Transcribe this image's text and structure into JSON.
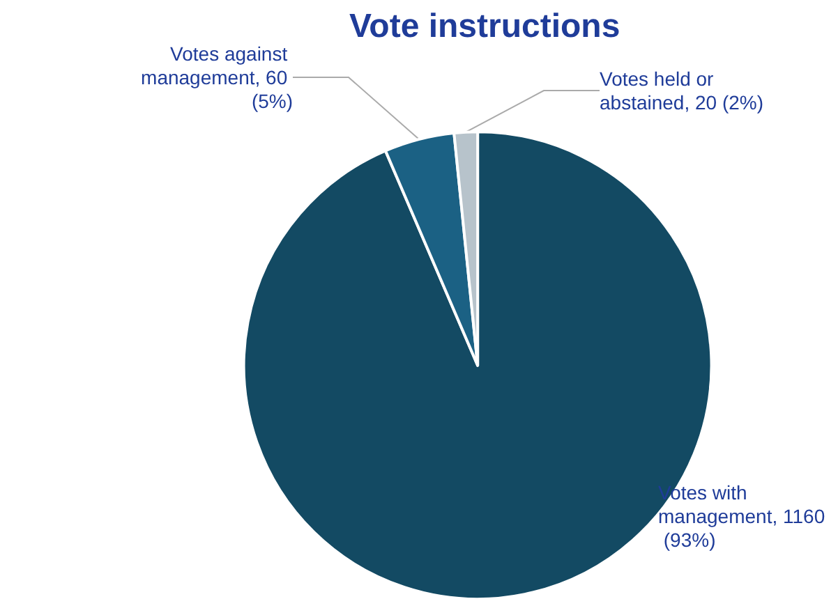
{
  "chart_data": {
    "type": "pie",
    "title": "Vote instructions",
    "categories": [
      "Votes with management",
      "Votes against management",
      "Votes held or abstained"
    ],
    "values": [
      1160,
      60,
      20
    ],
    "value_labels": [
      "1160 (93%)",
      "60 (5%)",
      "20 (2%)"
    ],
    "colors": [
      "#134a63",
      "#1b6184",
      "#b7c3cb"
    ]
  }
}
